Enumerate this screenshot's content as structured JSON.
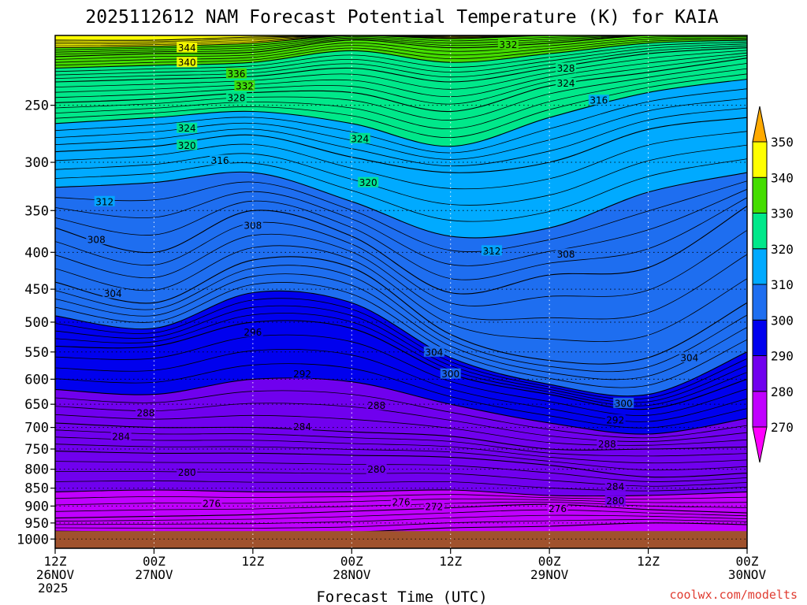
{
  "chart_data": {
    "type": "heatmap",
    "title": "2025112612 NAM Forecast Potential Temperature (K) for KAIA",
    "xlabel": "Forecast Time (UTC)",
    "ylabel": "",
    "credit": "coolwx.com/modelts",
    "x_hours": [
      0,
      12,
      24,
      36,
      48,
      60,
      72,
      84
    ],
    "x_ticks": [
      {
        "hour": 0,
        "label1": "12Z",
        "label2": "26NOV",
        "label3": "2025"
      },
      {
        "hour": 12,
        "label1": "00Z",
        "label2": "27NOV",
        "label3": ""
      },
      {
        "hour": 24,
        "label1": "12Z",
        "label2": "",
        "label3": ""
      },
      {
        "hour": 36,
        "label1": "00Z",
        "label2": "28NOV",
        "label3": ""
      },
      {
        "hour": 48,
        "label1": "12Z",
        "label2": "",
        "label3": ""
      },
      {
        "hour": 60,
        "label1": "00Z",
        "label2": "29NOV",
        "label3": ""
      },
      {
        "hour": 72,
        "label1": "12Z",
        "label2": "",
        "label3": ""
      },
      {
        "hour": 84,
        "label1": "00Z",
        "label2": "30NOV",
        "label3": ""
      }
    ],
    "pressure_ticks": [
      250,
      300,
      350,
      400,
      450,
      500,
      550,
      600,
      650,
      700,
      750,
      800,
      850,
      900,
      950,
      1000
    ],
    "y_range_hpa": [
      200,
      1030
    ],
    "surface_pressure_hpa": 975,
    "colorbar_levels": [
      270,
      280,
      290,
      300,
      310,
      320,
      330,
      340,
      350
    ],
    "colorbar_colors": [
      "#ff00ff",
      "#c000ff",
      "#7000ee",
      "#0000ee",
      "#1e6ef0",
      "#00aaff",
      "#00e88a",
      "#44dd00",
      "#ffff00",
      "#ffaa00"
    ],
    "isentropes": [
      {
        "theta": 272,
        "p": [
          975,
          978,
          980,
          978,
          965,
          960,
          950,
          955
        ]
      },
      {
        "theta": 276,
        "p": [
          935,
          930,
          925,
          915,
          905,
          895,
          910,
          920
        ]
      },
      {
        "theta": 280,
        "p": [
          860,
          855,
          860,
          860,
          855,
          870,
          870,
          860
        ]
      },
      {
        "theta": 284,
        "p": [
          755,
          760,
          760,
          765,
          770,
          790,
          820,
          810
        ]
      },
      {
        "theta": 288,
        "p": [
          690,
          700,
          700,
          710,
          720,
          750,
          750,
          745
        ]
      },
      {
        "theta": 292,
        "p": [
          620,
          630,
          600,
          605,
          650,
          690,
          715,
          680
        ]
      },
      {
        "theta": 296,
        "p": [
          540,
          540,
          500,
          510,
          590,
          630,
          660,
          600
        ]
      },
      {
        "theta": 300,
        "p": [
          490,
          510,
          455,
          470,
          560,
          610,
          630,
          550
        ]
      },
      {
        "theta": 304,
        "p": [
          440,
          470,
          410,
          420,
          520,
          565,
          560,
          470
        ]
      },
      {
        "theta": 308,
        "p": [
          370,
          400,
          350,
          380,
          455,
          430,
          420,
          345
        ]
      },
      {
        "theta": 312,
        "p": [
          325,
          320,
          310,
          340,
          380,
          370,
          330,
          310
        ]
      },
      {
        "theta": 316,
        "p": [
          290,
          285,
          275,
          295,
          310,
          300,
          270,
          260
        ]
      },
      {
        "theta": 320,
        "p": [
          265,
          260,
          255,
          265,
          285,
          260,
          240,
          230
        ]
      },
      {
        "theta": 324,
        "p": [
          248,
          245,
          240,
          240,
          255,
          235,
          225,
          215
        ]
      },
      {
        "theta": 328,
        "p": [
          232,
          230,
          228,
          222,
          232,
          222,
          212,
          208
        ]
      },
      {
        "theta": 332,
        "p": [
          222,
          220,
          218,
          210,
          218,
          212,
          205,
          203
        ]
      },
      {
        "theta": 336,
        "p": [
          214,
          212,
          211,
          203,
          208,
          205,
          200,
          200
        ]
      },
      {
        "theta": 340,
        "p": [
          208,
          207,
          205,
          200,
          202,
          200,
          200,
          200
        ]
      },
      {
        "theta": 344,
        "p": [
          203,
          203,
          201,
          200,
          200,
          200,
          200,
          200
        ]
      }
    ],
    "contour_labels": [
      {
        "text": "344",
        "hour": 16,
        "p": 208
      },
      {
        "text": "340",
        "hour": 16,
        "p": 218
      },
      {
        "text": "336",
        "hour": 22,
        "p": 226
      },
      {
        "text": "332",
        "hour": 23,
        "p": 235
      },
      {
        "text": "328",
        "hour": 22,
        "p": 244
      },
      {
        "text": "332",
        "hour": 55,
        "p": 206
      },
      {
        "text": "328",
        "hour": 62,
        "p": 222
      },
      {
        "text": "324",
        "hour": 62,
        "p": 233
      },
      {
        "text": "316",
        "hour": 66,
        "p": 246
      },
      {
        "text": "324",
        "hour": 16,
        "p": 269
      },
      {
        "text": "320",
        "hour": 16,
        "p": 284
      },
      {
        "text": "316",
        "hour": 20,
        "p": 298
      },
      {
        "text": "324",
        "hour": 37,
        "p": 278
      },
      {
        "text": "320",
        "hour": 38,
        "p": 320
      },
      {
        "text": "312",
        "hour": 6,
        "p": 340
      },
      {
        "text": "308",
        "hour": 5,
        "p": 384
      },
      {
        "text": "308",
        "hour": 24,
        "p": 367
      },
      {
        "text": "312",
        "hour": 53,
        "p": 398
      },
      {
        "text": "308",
        "hour": 62,
        "p": 402
      },
      {
        "text": "304",
        "hour": 7,
        "p": 456
      },
      {
        "text": "296",
        "hour": 24,
        "p": 516
      },
      {
        "text": "304",
        "hour": 46,
        "p": 550
      },
      {
        "text": "304",
        "hour": 77,
        "p": 560
      },
      {
        "text": "292",
        "hour": 30,
        "p": 590
      },
      {
        "text": "300",
        "hour": 48,
        "p": 590
      },
      {
        "text": "300",
        "hour": 69,
        "p": 648
      },
      {
        "text": "292",
        "hour": 68,
        "p": 683
      },
      {
        "text": "288",
        "hour": 11,
        "p": 668
      },
      {
        "text": "288",
        "hour": 39,
        "p": 652
      },
      {
        "text": "284",
        "hour": 8,
        "p": 720
      },
      {
        "text": "284",
        "hour": 30,
        "p": 698
      },
      {
        "text": "288",
        "hour": 67,
        "p": 738
      },
      {
        "text": "280",
        "hour": 16,
        "p": 808
      },
      {
        "text": "280",
        "hour": 39,
        "p": 800
      },
      {
        "text": "284",
        "hour": 68,
        "p": 845
      },
      {
        "text": "276",
        "hour": 19,
        "p": 892
      },
      {
        "text": "276",
        "hour": 42,
        "p": 888
      },
      {
        "text": "272",
        "hour": 46,
        "p": 901
      },
      {
        "text": "276",
        "hour": 61,
        "p": 907
      },
      {
        "text": "280",
        "hour": 68,
        "p": 885
      }
    ]
  },
  "colors": {
    "ground": "#a0522d",
    "credit": "#e03c31",
    "grid": "#000000"
  }
}
